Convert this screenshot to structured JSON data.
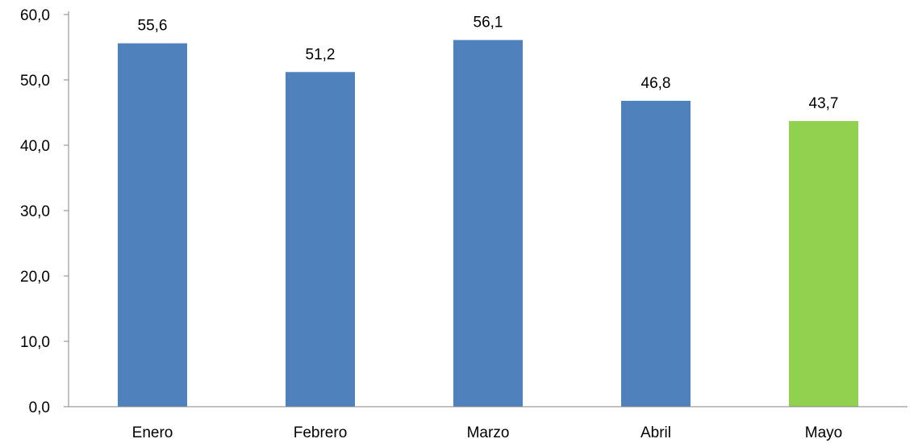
{
  "chart_data": {
    "type": "bar",
    "title": "",
    "xlabel": "",
    "ylabel": "",
    "categories": [
      "Enero",
      "Febrero",
      "Marzo",
      "Abril",
      "Mayo"
    ],
    "values": [
      55.6,
      51.2,
      56.1,
      46.8,
      43.7
    ],
    "data_labels": [
      "55,6",
      "51,2",
      "56,1",
      "46,8",
      "43,7"
    ],
    "ylim": [
      0,
      60
    ],
    "yticks": [
      0,
      10,
      20,
      30,
      40,
      50,
      60
    ],
    "ytick_labels": [
      "0,0",
      "10,0",
      "20,0",
      "30,0",
      "40,0",
      "50,0",
      "60,0"
    ],
    "grid": false,
    "legend": "none",
    "colors": {
      "default_bar": "#4F81BD",
      "highlight_bar": "#92D050",
      "axis": "#868686"
    },
    "highlight_index": 4
  }
}
